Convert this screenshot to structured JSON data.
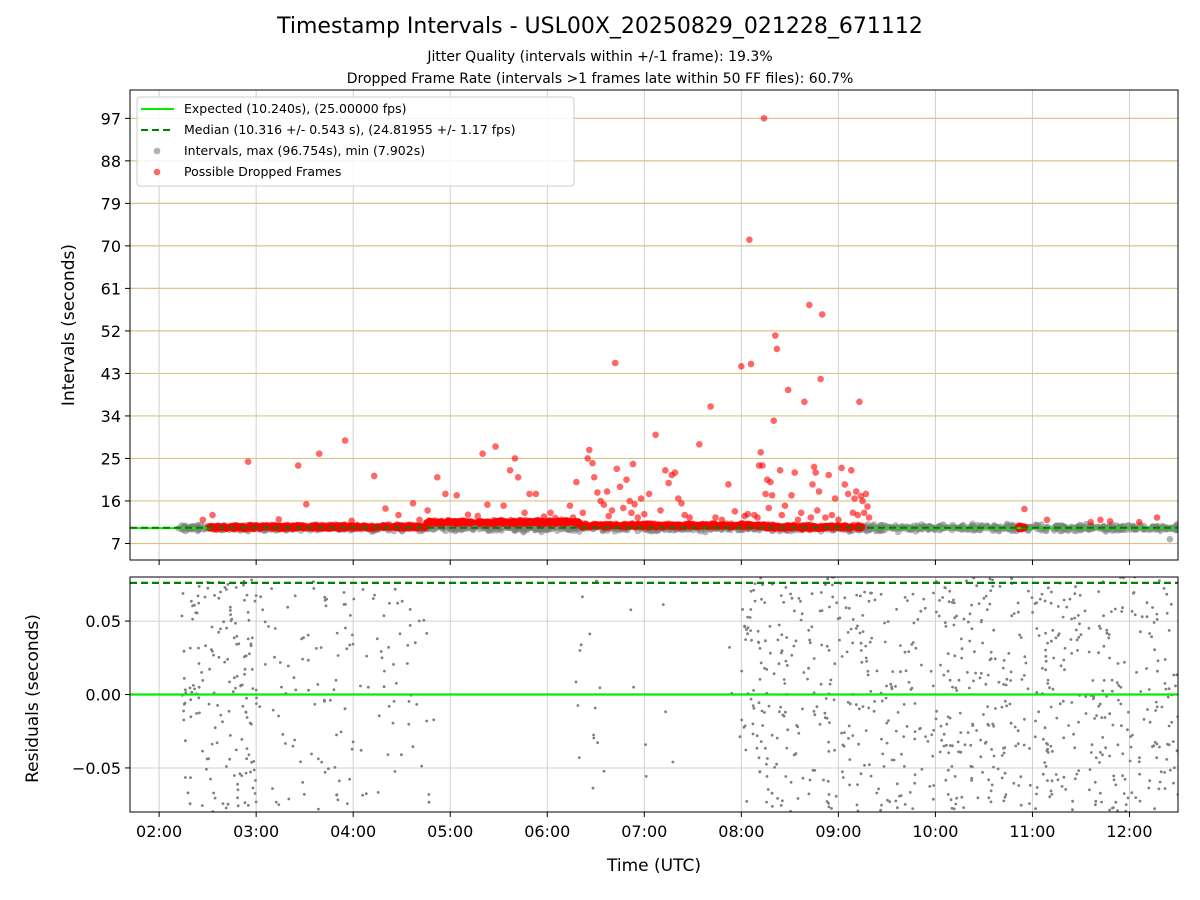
{
  "title": "Timestamp Intervals - USL00X_20250829_021228_671112",
  "subtitles": [
    "Jitter Quality (intervals within +/-1 frame): 19.3%",
    "Dropped Frame Rate (intervals >1 frames late within 50 FF files): 60.7%"
  ],
  "colors": {
    "expected": "#00ee00",
    "median": "#007f00",
    "intervals": "#7f7f7f",
    "dropped": "#ff0000",
    "hgrid": "#d9c48a",
    "vgrid": "#d0d0d0"
  },
  "chart_data": [
    {
      "type": "scatter",
      "xlabel": "",
      "ylabel": "Intervals (seconds)",
      "xlim": [
        "01:42",
        "12:30"
      ],
      "ylim": [
        3.5,
        103
      ],
      "yticks": [
        7,
        16,
        25,
        34,
        43,
        52,
        61,
        70,
        79,
        88,
        97
      ],
      "grid": true,
      "legend_position": "top-left",
      "legend": [
        "Expected (10.240s), (25.00000 fps)",
        "Median (10.316 +/- 0.543 s), (24.81955 +/- 1.17 fps)",
        "Intervals, max (96.754s), min (7.902s)",
        "Possible Dropped Frames"
      ],
      "expected_interval": 10.24,
      "median_interval": 10.316,
      "series": [
        {
          "name": "Intervals, max (96.754s), min (7.902s)",
          "x_range": [
            "02:12",
            "12:30"
          ],
          "typical_range": [
            9.3,
            11.3
          ],
          "max": 96.754,
          "min": 7.902
        },
        {
          "name": "Possible Dropped Frames",
          "dense_band": [
            {
              "x_range": [
                "02:30",
                "02:55"
              ],
              "y": 10.4
            },
            {
              "x_range": [
                "02:55",
                "04:45"
              ],
              "y": 10.5
            },
            {
              "x_range": [
                "04:45",
                "06:20"
              ],
              "y": 11.5
            },
            {
              "x_range": [
                "06:20",
                "08:15"
              ],
              "y": 10.8
            },
            {
              "x_range": [
                "08:15",
                "09:15"
              ],
              "y": 10.5
            },
            {
              "x_range": [
                "10:50",
                "10:56"
              ],
              "y": 10.4
            }
          ],
          "points": [
            [
              "02:27",
              12.0
            ],
            [
              "02:33",
              13.0
            ],
            [
              "02:55",
              24.3
            ],
            [
              "03:14",
              12.1
            ],
            [
              "03:26",
              23.5
            ],
            [
              "03:31",
              15.3
            ],
            [
              "03:39",
              26.0
            ],
            [
              "03:55",
              28.8
            ],
            [
              "03:59",
              11.8
            ],
            [
              "04:13",
              21.3
            ],
            [
              "04:20",
              14.4
            ],
            [
              "04:28",
              13.0
            ],
            [
              "04:37",
              15.5
            ],
            [
              "04:41",
              12.0
            ],
            [
              "04:46",
              14.0
            ],
            [
              "04:52",
              21.0
            ],
            [
              "04:57",
              17.5
            ],
            [
              "05:04",
              17.2
            ],
            [
              "05:11",
              13.1
            ],
            [
              "05:17",
              12.8
            ],
            [
              "05:20",
              26.0
            ],
            [
              "05:23",
              15.2
            ],
            [
              "05:28",
              27.5
            ],
            [
              "05:33",
              15.0
            ],
            [
              "05:37",
              22.5
            ],
            [
              "05:40",
              25.0
            ],
            [
              "05:42",
              21.0
            ],
            [
              "05:46",
              13.5
            ],
            [
              "05:49",
              17.5
            ],
            [
              "05:53",
              17.5
            ],
            [
              "05:58",
              12.7
            ],
            [
              "06:02",
              13.5
            ],
            [
              "06:05",
              12.4
            ],
            [
              "06:09",
              12.0
            ],
            [
              "06:14",
              15.0
            ],
            [
              "06:16",
              12.5
            ],
            [
              "06:18",
              20.0
            ],
            [
              "06:22",
              13.5
            ],
            [
              "06:25",
              25.0
            ],
            [
              "06:26",
              26.8
            ],
            [
              "06:28",
              24.0
            ],
            [
              "06:29",
              21.0
            ],
            [
              "06:31",
              17.8
            ],
            [
              "06:33",
              16.0
            ],
            [
              "06:35",
              15.2
            ],
            [
              "06:37",
              18.0
            ],
            [
              "06:38",
              12.8
            ],
            [
              "06:40",
              14.0
            ],
            [
              "06:42",
              45.2
            ],
            [
              "06:43",
              22.8
            ],
            [
              "06:45",
              19.0
            ],
            [
              "06:47",
              14.5
            ],
            [
              "06:49",
              20.5
            ],
            [
              "06:51",
              16.0
            ],
            [
              "06:52",
              13.5
            ],
            [
              "06:53",
              23.8
            ],
            [
              "06:54",
              15.3
            ],
            [
              "06:56",
              12.5
            ],
            [
              "06:58",
              16.5
            ],
            [
              "07:00",
              13.2
            ],
            [
              "07:03",
              17.5
            ],
            [
              "07:07",
              30.0
            ],
            [
              "07:10",
              14.0
            ],
            [
              "07:13",
              22.5
            ],
            [
              "07:15",
              19.8
            ],
            [
              "07:17",
              21.5
            ],
            [
              "07:19",
              22.0
            ],
            [
              "07:21",
              16.5
            ],
            [
              "07:23",
              15.5
            ],
            [
              "07:25",
              13.0
            ],
            [
              "07:28",
              12.5
            ],
            [
              "07:34",
              28.0
            ],
            [
              "07:41",
              36.0
            ],
            [
              "07:44",
              12.5
            ],
            [
              "07:48",
              12.0
            ],
            [
              "07:52",
              19.5
            ],
            [
              "07:56",
              13.8
            ],
            [
              "08:00",
              44.5
            ],
            [
              "08:02",
              12.8
            ],
            [
              "08:04",
              13.2
            ],
            [
              "08:05",
              71.3
            ],
            [
              "08:06",
              45.0
            ],
            [
              "08:08",
              13.0
            ],
            [
              "08:10",
              12.5
            ],
            [
              "08:11",
              23.5
            ],
            [
              "08:12",
              26.3
            ],
            [
              "08:13",
              23.5
            ],
            [
              "08:14",
              97.0
            ],
            [
              "08:15",
              17.5
            ],
            [
              "08:16",
              20.5
            ],
            [
              "08:17",
              14.5
            ],
            [
              "08:18",
              20.0
            ],
            [
              "08:19",
              17.2
            ],
            [
              "08:20",
              33.0
            ],
            [
              "08:21",
              51.0
            ],
            [
              "08:22",
              48.2
            ],
            [
              "08:24",
              22.5
            ],
            [
              "08:25",
              13.0
            ],
            [
              "08:27",
              15.0
            ],
            [
              "08:29",
              39.5
            ],
            [
              "08:31",
              17.2
            ],
            [
              "08:33",
              22.0
            ],
            [
              "08:35",
              12.0
            ],
            [
              "08:37",
              13.5
            ],
            [
              "08:39",
              37.0
            ],
            [
              "08:42",
              57.5
            ],
            [
              "08:43",
              12.5
            ],
            [
              "08:44",
              19.5
            ],
            [
              "08:45",
              23.2
            ],
            [
              "08:46",
              22.0
            ],
            [
              "08:47",
              14.0
            ],
            [
              "08:48",
              18.0
            ],
            [
              "08:49",
              41.8
            ],
            [
              "08:50",
              55.5
            ],
            [
              "08:52",
              12.5
            ],
            [
              "08:54",
              21.5
            ],
            [
              "08:56",
              13.0
            ],
            [
              "08:58",
              16.5
            ],
            [
              "09:00",
              12.0
            ],
            [
              "09:02",
              23.0
            ],
            [
              "09:04",
              19.5
            ],
            [
              "09:06",
              17.5
            ],
            [
              "09:08",
              22.5
            ],
            [
              "09:09",
              13.5
            ],
            [
              "09:10",
              16.5
            ],
            [
              "09:11",
              18.0
            ],
            [
              "09:12",
              13.0
            ],
            [
              "09:13",
              37.0
            ],
            [
              "09:14",
              17.0
            ],
            [
              "09:15",
              16.0
            ],
            [
              "09:16",
              13.5
            ],
            [
              "09:17",
              17.5
            ],
            [
              "09:18",
              14.8
            ],
            [
              "09:19",
              12.5
            ],
            [
              "10:55",
              14.3
            ],
            [
              "11:09",
              12.0
            ],
            [
              "11:36",
              11.5
            ],
            [
              "11:42",
              12.0
            ],
            [
              "11:48",
              11.7
            ],
            [
              "12:06",
              11.5
            ],
            [
              "12:17",
              12.5
            ]
          ]
        }
      ]
    },
    {
      "type": "scatter",
      "xlabel": "Time (UTC)",
      "ylabel": "Residuals (seconds)",
      "xlim": [
        "01:42",
        "12:30"
      ],
      "ylim": [
        -0.08,
        0.08
      ],
      "yticks": [
        -0.05,
        0.0,
        0.05
      ],
      "yticklabels": [
        "−0.05",
        "0.00",
        "0.05"
      ],
      "xticks": [
        "02:00",
        "03:00",
        "04:00",
        "05:00",
        "06:00",
        "07:00",
        "08:00",
        "09:00",
        "10:00",
        "11:00",
        "12:00"
      ],
      "grid": true,
      "reference_lines": [
        {
          "name": "expected",
          "y": 0.0
        },
        {
          "name": "median",
          "y": 0.076
        }
      ],
      "series": [
        {
          "name": "Residuals",
          "spread": [
            -0.08,
            0.08
          ],
          "clusters": [
            {
              "x_range": [
                "02:14",
                "03:02"
              ],
              "count": 160
            },
            {
              "x_range": [
                "03:02",
                "04:00"
              ],
              "count": 80
            },
            {
              "x_range": [
                "04:00",
                "04:52"
              ],
              "count": 50
            },
            {
              "x_range": [
                "06:16",
                "06:36"
              ],
              "count": 15
            },
            {
              "x_range": [
                "06:50",
                "07:22"
              ],
              "count": 7
            },
            {
              "x_range": [
                "07:50",
                "08:00"
              ],
              "count": 3
            },
            {
              "x_range": [
                "08:00",
                "09:20"
              ],
              "count": 230
            },
            {
              "x_range": [
                "09:20",
                "10:00"
              ],
              "count": 90
            },
            {
              "x_range": [
                "10:00",
                "11:00"
              ],
              "count": 180
            },
            {
              "x_range": [
                "11:00",
                "12:30"
              ],
              "count": 260
            }
          ]
        }
      ]
    }
  ]
}
